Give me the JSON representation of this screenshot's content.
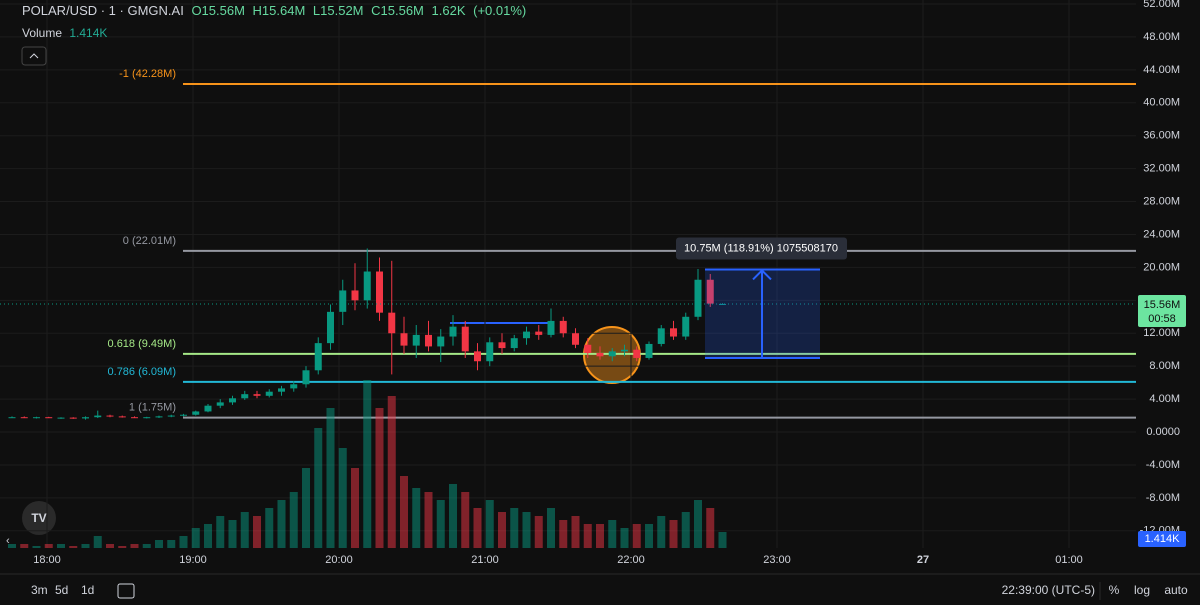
{
  "chart_data": {
    "type": "candlestick",
    "symbol": "POLAR/USD · 1 · GMGN.AI",
    "ohlc_texts": [
      "O15.56M",
      "H15.64M",
      "L15.52M",
      "C15.56M",
      "1.62K",
      "(+0.01%)"
    ],
    "volume_title": "Volume",
    "volume_value": "1.414K",
    "candles": [
      [
        1.8,
        1.9,
        1.7,
        1.8
      ],
      [
        1.8,
        1.9,
        1.7,
        1.75
      ],
      [
        1.75,
        1.85,
        1.65,
        1.8
      ],
      [
        1.8,
        1.85,
        1.7,
        1.7
      ],
      [
        1.7,
        1.8,
        1.6,
        1.75
      ],
      [
        1.75,
        1.8,
        1.6,
        1.65
      ],
      [
        1.65,
        1.9,
        1.5,
        1.8
      ],
      [
        1.8,
        2.6,
        1.7,
        2.0
      ],
      [
        2.0,
        2.1,
        1.8,
        1.9
      ],
      [
        1.9,
        2.0,
        1.75,
        1.8
      ],
      [
        1.8,
        1.9,
        1.7,
        1.75
      ],
      [
        1.75,
        1.85,
        1.65,
        1.8
      ],
      [
        1.8,
        2.0,
        1.7,
        1.9
      ],
      [
        1.9,
        2.1,
        1.8,
        2.0
      ],
      [
        2.0,
        2.2,
        1.9,
        2.1
      ],
      [
        2.1,
        2.6,
        2.0,
        2.5
      ],
      [
        2.5,
        3.4,
        2.4,
        3.2
      ],
      [
        3.2,
        4.0,
        2.9,
        3.6
      ],
      [
        3.6,
        4.4,
        3.3,
        4.1
      ],
      [
        4.1,
        5.0,
        3.9,
        4.6
      ],
      [
        4.6,
        5.0,
        4.1,
        4.4
      ],
      [
        4.4,
        5.2,
        4.2,
        4.9
      ],
      [
        4.9,
        5.6,
        4.4,
        5.3
      ],
      [
        5.3,
        6.2,
        4.9,
        5.8
      ],
      [
        5.8,
        8.0,
        5.4,
        7.5
      ],
      [
        7.5,
        11.5,
        7.0,
        10.8
      ],
      [
        10.8,
        15.5,
        10.0,
        14.6
      ],
      [
        14.6,
        18.5,
        13.0,
        17.2
      ],
      [
        17.2,
        20.5,
        14.8,
        16.0
      ],
      [
        16.0,
        22.3,
        15.0,
        19.5
      ],
      [
        19.5,
        21.2,
        13.5,
        14.5
      ],
      [
        14.5,
        20.8,
        7.0,
        12.0
      ],
      [
        12.0,
        14.0,
        9.5,
        10.5
      ],
      [
        10.5,
        13.0,
        9.0,
        11.8
      ],
      [
        11.8,
        13.5,
        9.8,
        10.4
      ],
      [
        10.4,
        12.5,
        8.5,
        11.6
      ],
      [
        11.6,
        14.2,
        10.5,
        12.8
      ],
      [
        12.8,
        13.5,
        9.0,
        9.8
      ],
      [
        9.8,
        10.8,
        7.5,
        8.6
      ],
      [
        8.6,
        11.5,
        8.0,
        10.9
      ],
      [
        10.9,
        12.0,
        9.5,
        10.2
      ],
      [
        10.2,
        11.8,
        9.8,
        11.4
      ],
      [
        11.4,
        12.8,
        10.6,
        12.2
      ],
      [
        12.2,
        13.0,
        11.2,
        11.8
      ],
      [
        11.8,
        15.0,
        11.5,
        13.5
      ],
      [
        13.5,
        14.0,
        11.5,
        12.0
      ],
      [
        12.0,
        12.6,
        10.2,
        10.6
      ],
      [
        10.6,
        11.4,
        9.0,
        9.6
      ],
      [
        9.6,
        10.4,
        8.8,
        9.2
      ],
      [
        9.2,
        10.2,
        8.6,
        9.8
      ],
      [
        9.8,
        10.6,
        9.2,
        10.0
      ],
      [
        10.0,
        10.4,
        8.6,
        9.0
      ],
      [
        9.0,
        11.0,
        8.8,
        10.7
      ],
      [
        10.7,
        13.0,
        10.4,
        12.6
      ],
      [
        12.6,
        13.5,
        11.2,
        11.6
      ],
      [
        11.6,
        14.5,
        11.2,
        14.0
      ],
      [
        14.0,
        19.8,
        13.6,
        18.5
      ],
      [
        18.5,
        19.2,
        15.2,
        15.6
      ],
      [
        15.56,
        15.64,
        15.52,
        15.56
      ]
    ],
    "volume": [
      1,
      1,
      0.5,
      1,
      1,
      0.5,
      1,
      3,
      1,
      0.5,
      1,
      1,
      2,
      2,
      3,
      5,
      6,
      8,
      7,
      9,
      8,
      10,
      12,
      14,
      20,
      30,
      35,
      25,
      20,
      42,
      35,
      38,
      18,
      15,
      14,
      12,
      16,
      14,
      10,
      12,
      9,
      10,
      9,
      8,
      10,
      7,
      8,
      6,
      6,
      7,
      5,
      6,
      6,
      8,
      7,
      9,
      12,
      10,
      4
    ],
    "up_color": "#089981",
    "down_color": "#f23645",
    "ylim": [
      -12,
      52
    ],
    "yticks": [
      {
        "value": 52,
        "label": "52.00M"
      },
      {
        "value": 48,
        "label": "48.00M"
      },
      {
        "value": 44,
        "label": "44.00M"
      },
      {
        "value": 40,
        "label": "40.00M"
      },
      {
        "value": 36,
        "label": "36.00M"
      },
      {
        "value": 32,
        "label": "32.00M"
      },
      {
        "value": 28,
        "label": "28.00M"
      },
      {
        "value": 24,
        "label": "24.00M"
      },
      {
        "value": 20,
        "label": "20.00M"
      },
      {
        "value": 16,
        "label": "16.00M"
      },
      {
        "value": 12,
        "label": "12.00M"
      },
      {
        "value": 8,
        "label": "8.00M"
      },
      {
        "value": 4,
        "label": "4.00M"
      },
      {
        "value": 0,
        "label": "0.0000"
      },
      {
        "value": -4,
        "label": "-4.00M"
      },
      {
        "value": -8,
        "label": "-8.00M"
      },
      {
        "value": -12,
        "label": "-12.00M"
      }
    ],
    "time_labels": [
      "18:00",
      "19:00",
      "20:00",
      "21:00",
      "22:00",
      "23:00",
      "27",
      "01:00"
    ],
    "fib_levels": [
      {
        "label": "-1 (42.28M)",
        "value": 42.28,
        "color": "#f7931a"
      },
      {
        "label": "0 (22.01M)",
        "value": 22.01,
        "color": "#9598a1"
      },
      {
        "label": "0.618 (9.49M)",
        "value": 9.49,
        "color": "#a5e887"
      },
      {
        "label": "0.786 (6.09M)",
        "value": 6.09,
        "color": "#22b8d6"
      },
      {
        "label": "1 (1.75M)",
        "value": 1.75,
        "color": "#9598a1"
      }
    ],
    "last_price": {
      "value": 15.56,
      "label": "15.56M"
    },
    "countdown": "00:58",
    "volume_tag": "1.414K",
    "measure": {
      "label": "10.75M (118.91%) 1075508170",
      "low": 9.0,
      "high": 19.75
    },
    "toolbar_left": [
      "3m",
      "5d",
      "1d"
    ],
    "clock": "22:39:00 (UTC-5)",
    "toolbar_right": [
      "%",
      "log",
      "auto"
    ]
  }
}
